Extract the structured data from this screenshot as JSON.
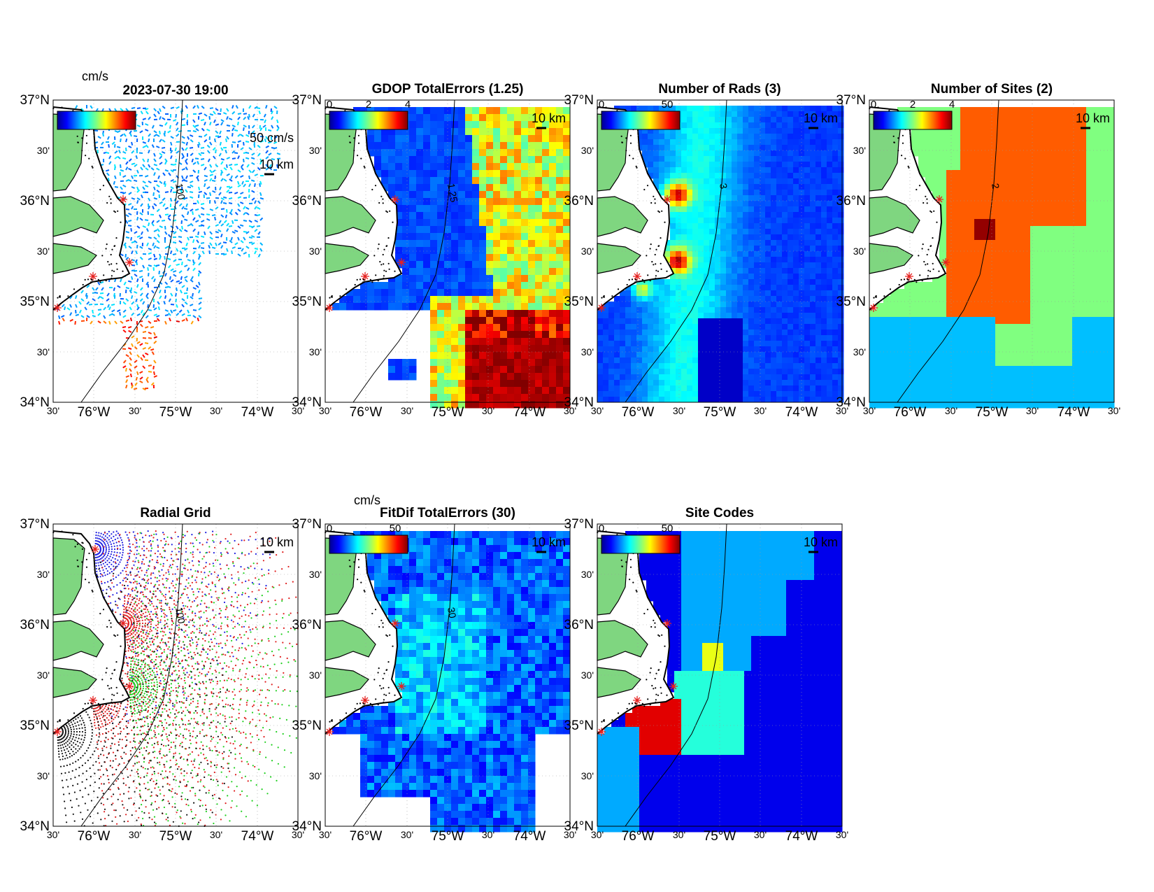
{
  "figure": {
    "datetime": "2023-07-30 19:00",
    "panels": [
      {
        "id": "p1",
        "title": "",
        "cbar_unit": "cm/s",
        "cbar_ticks": [],
        "contour_label": "100",
        "scale_text": "10 km",
        "vec_scale": "50 cm/s",
        "pattern": "vectors"
      },
      {
        "id": "p2",
        "title": "GDOP TotalErrors (1.25)",
        "cbar_unit": "",
        "cbar_ticks": [
          "0",
          "2",
          "4"
        ],
        "contour_label": "1.25",
        "scale_text": "10 km",
        "pattern": "gdop"
      },
      {
        "id": "p3",
        "title": "Number of Rads (3)",
        "cbar_unit": "",
        "cbar_ticks": [
          "0",
          "50"
        ],
        "contour_label": "3",
        "scale_text": "10 km",
        "pattern": "rads"
      },
      {
        "id": "p4",
        "title": "Number of Sites (2)",
        "cbar_unit": "",
        "cbar_ticks": [
          "0",
          "2",
          "4"
        ],
        "contour_label": "2",
        "scale_text": "10 km",
        "pattern": "sites"
      },
      {
        "id": "p5",
        "title": "Radial Grid",
        "cbar_unit": "",
        "cbar_ticks": [],
        "contour_label": "100",
        "scale_text": "10 km",
        "pattern": "radial"
      },
      {
        "id": "p6",
        "title": "FitDif TotalErrors (30)",
        "cbar_unit": "cm/s",
        "cbar_ticks": [
          "0",
          "50"
        ],
        "contour_label": "30",
        "scale_text": "10 km",
        "pattern": "fitdif"
      },
      {
        "id": "p7",
        "title": "Site Codes",
        "cbar_unit": "",
        "cbar_ticks": [
          "0",
          "50"
        ],
        "contour_label": "",
        "scale_text": "10 km",
        "pattern": "codes"
      }
    ],
    "lat_labels": [
      "37°N",
      "30'",
      "36°N",
      "30'",
      "35°N",
      "30'",
      "34°N"
    ],
    "lon_labels": [
      "30'",
      "76°W",
      "30'",
      "75°W",
      "30'",
      "74°W",
      "30'"
    ],
    "colors": {
      "land": "#7fd680",
      "site": "#e8201e",
      "contour": "#000000"
    }
  }
}
